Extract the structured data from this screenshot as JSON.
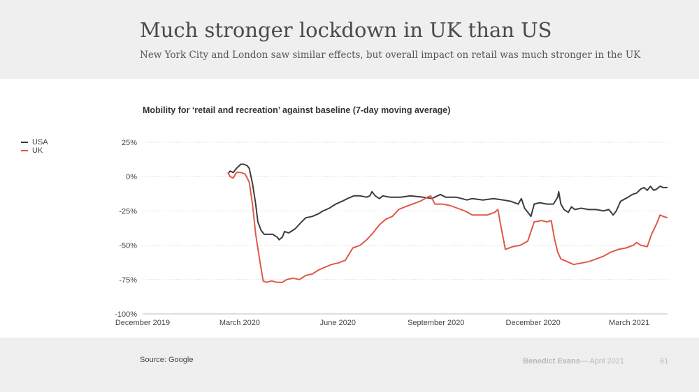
{
  "slide": {
    "title": "Much stronger lockdown in UK than US",
    "subtitle": "New York City and London saw similar effects, but overall impact on retail was much stronger in the UK"
  },
  "footer": {
    "source": "Source: Google",
    "author": "Benedict Evans",
    "date": "— April 2021",
    "page_number": "61"
  },
  "chart_data": {
    "type": "line",
    "title": "Mobility for ‘retail and recreation’ against baseline (7-day moving average)",
    "x_axis": {
      "range": [
        "2019-12-01",
        "2021-04-06"
      ],
      "ticks": [
        {
          "date": "2019-12-01",
          "label": "December 2019"
        },
        {
          "date": "2020-03-01",
          "label": "March 2020"
        },
        {
          "date": "2020-06-01",
          "label": "June 2020"
        },
        {
          "date": "2020-09-01",
          "label": "September 2020"
        },
        {
          "date": "2020-12-01",
          "label": "December 2020"
        },
        {
          "date": "2021-03-01",
          "label": "March 2021"
        }
      ]
    },
    "y_axis": {
      "range": [
        -100,
        25
      ],
      "ticks": [
        {
          "value": 25,
          "label": "25%"
        },
        {
          "value": 0,
          "label": "0%"
        },
        {
          "value": -25,
          "label": "-25%"
        },
        {
          "value": -50,
          "label": "-50%"
        },
        {
          "value": -75,
          "label": "-75%"
        },
        {
          "value": -100,
          "label": "-100%"
        }
      ]
    },
    "grid": "horizontal dotted",
    "legend_position": "left",
    "series": [
      {
        "name": "USA",
        "color": "#3d3d3d",
        "points": [
          [
            "2020-02-19",
            2
          ],
          [
            "2020-02-21",
            4
          ],
          [
            "2020-02-24",
            3
          ],
          [
            "2020-02-27",
            6
          ],
          [
            "2020-03-02",
            9
          ],
          [
            "2020-03-05",
            9
          ],
          [
            "2020-03-08",
            8
          ],
          [
            "2020-03-10",
            6
          ],
          [
            "2020-03-13",
            -5
          ],
          [
            "2020-03-16",
            -20
          ],
          [
            "2020-03-18",
            -33
          ],
          [
            "2020-03-21",
            -39
          ],
          [
            "2020-03-24",
            -42
          ],
          [
            "2020-03-28",
            -42
          ],
          [
            "2020-04-01",
            -42
          ],
          [
            "2020-04-05",
            -44
          ],
          [
            "2020-04-07",
            -46
          ],
          [
            "2020-04-10",
            -44
          ],
          [
            "2020-04-12",
            -40
          ],
          [
            "2020-04-16",
            -41
          ],
          [
            "2020-04-22",
            -38
          ],
          [
            "2020-04-28",
            -33
          ],
          [
            "2020-05-02",
            -30
          ],
          [
            "2020-05-08",
            -29
          ],
          [
            "2020-05-14",
            -27
          ],
          [
            "2020-05-18",
            -25
          ],
          [
            "2020-05-24",
            -23
          ],
          [
            "2020-05-30",
            -20
          ],
          [
            "2020-06-05",
            -18
          ],
          [
            "2020-06-10",
            -16
          ],
          [
            "2020-06-16",
            -14
          ],
          [
            "2020-06-22",
            -14
          ],
          [
            "2020-06-28",
            -15
          ],
          [
            "2020-07-01",
            -14
          ],
          [
            "2020-07-03",
            -11
          ],
          [
            "2020-07-06",
            -14
          ],
          [
            "2020-07-10",
            -16
          ],
          [
            "2020-07-13",
            -14
          ],
          [
            "2020-07-20",
            -15
          ],
          [
            "2020-07-30",
            -15
          ],
          [
            "2020-08-08",
            -14
          ],
          [
            "2020-08-20",
            -15
          ],
          [
            "2020-08-28",
            -16
          ],
          [
            "2020-09-05",
            -13
          ],
          [
            "2020-09-10",
            -15
          ],
          [
            "2020-09-20",
            -15
          ],
          [
            "2020-09-30",
            -17
          ],
          [
            "2020-10-05",
            -16
          ],
          [
            "2020-10-15",
            -17
          ],
          [
            "2020-10-25",
            -16
          ],
          [
            "2020-11-03",
            -17
          ],
          [
            "2020-11-10",
            -18
          ],
          [
            "2020-11-17",
            -20
          ],
          [
            "2020-11-20",
            -16
          ],
          [
            "2020-11-23",
            -23
          ],
          [
            "2020-11-27",
            -27
          ],
          [
            "2020-11-29",
            -29
          ],
          [
            "2020-12-02",
            -20
          ],
          [
            "2020-12-07",
            -19
          ],
          [
            "2020-12-14",
            -20
          ],
          [
            "2020-12-20",
            -20
          ],
          [
            "2020-12-24",
            -15
          ],
          [
            "2020-12-25",
            -11
          ],
          [
            "2020-12-27",
            -20
          ],
          [
            "2020-12-30",
            -24
          ],
          [
            "2021-01-03",
            -26
          ],
          [
            "2021-01-06",
            -22
          ],
          [
            "2021-01-09",
            -24
          ],
          [
            "2021-01-15",
            -23
          ],
          [
            "2021-01-22",
            -24
          ],
          [
            "2021-01-29",
            -24
          ],
          [
            "2021-02-05",
            -25
          ],
          [
            "2021-02-10",
            -24
          ],
          [
            "2021-02-14",
            -28
          ],
          [
            "2021-02-17",
            -25
          ],
          [
            "2021-02-21",
            -18
          ],
          [
            "2021-02-28",
            -15
          ],
          [
            "2021-03-04",
            -13
          ],
          [
            "2021-03-08",
            -12
          ],
          [
            "2021-03-12",
            -9
          ],
          [
            "2021-03-15",
            -8
          ],
          [
            "2021-03-18",
            -10
          ],
          [
            "2021-03-21",
            -7
          ],
          [
            "2021-03-24",
            -10
          ],
          [
            "2021-03-27",
            -9
          ],
          [
            "2021-03-30",
            -7
          ],
          [
            "2021-04-02",
            -8
          ],
          [
            "2021-04-06",
            -8
          ]
        ]
      },
      {
        "name": "UK",
        "color": "#e0584a",
        "points": [
          [
            "2020-02-19",
            3
          ],
          [
            "2020-02-21",
            0
          ],
          [
            "2020-02-24",
            -1
          ],
          [
            "2020-02-27",
            3
          ],
          [
            "2020-03-02",
            3
          ],
          [
            "2020-03-06",
            2
          ],
          [
            "2020-03-10",
            -4
          ],
          [
            "2020-03-13",
            -20
          ],
          [
            "2020-03-16",
            -42
          ],
          [
            "2020-03-20",
            -62
          ],
          [
            "2020-03-23",
            -76
          ],
          [
            "2020-03-26",
            -77
          ],
          [
            "2020-03-31",
            -76
          ],
          [
            "2020-04-05",
            -77
          ],
          [
            "2020-04-10",
            -77
          ],
          [
            "2020-04-14",
            -75
          ],
          [
            "2020-04-20",
            -74
          ],
          [
            "2020-04-26",
            -75
          ],
          [
            "2020-05-02",
            -72
          ],
          [
            "2020-05-08",
            -71
          ],
          [
            "2020-05-14",
            -68
          ],
          [
            "2020-05-20",
            -66
          ],
          [
            "2020-05-26",
            -64
          ],
          [
            "2020-06-01",
            -63
          ],
          [
            "2020-06-08",
            -61
          ],
          [
            "2020-06-15",
            -52
          ],
          [
            "2020-06-22",
            -50
          ],
          [
            "2020-06-28",
            -46
          ],
          [
            "2020-07-04",
            -41
          ],
          [
            "2020-07-10",
            -35
          ],
          [
            "2020-07-16",
            -31
          ],
          [
            "2020-07-22",
            -29
          ],
          [
            "2020-07-28",
            -24
          ],
          [
            "2020-08-03",
            -22
          ],
          [
            "2020-08-10",
            -20
          ],
          [
            "2020-08-17",
            -18
          ],
          [
            "2020-08-24",
            -15
          ],
          [
            "2020-08-27",
            -14
          ],
          [
            "2020-08-31",
            -20
          ],
          [
            "2020-09-07",
            -20
          ],
          [
            "2020-09-14",
            -21
          ],
          [
            "2020-09-21",
            -23
          ],
          [
            "2020-09-28",
            -25
          ],
          [
            "2020-10-05",
            -28
          ],
          [
            "2020-10-12",
            -28
          ],
          [
            "2020-10-19",
            -28
          ],
          [
            "2020-10-26",
            -26
          ],
          [
            "2020-10-29",
            -24
          ],
          [
            "2020-11-01",
            -37
          ],
          [
            "2020-11-05",
            -53
          ],
          [
            "2020-11-12",
            -51
          ],
          [
            "2020-11-19",
            -50
          ],
          [
            "2020-11-26",
            -47
          ],
          [
            "2020-12-02",
            -33
          ],
          [
            "2020-12-09",
            -32
          ],
          [
            "2020-12-14",
            -33
          ],
          [
            "2020-12-18",
            -32
          ],
          [
            "2020-12-21",
            -45
          ],
          [
            "2020-12-24",
            -55
          ],
          [
            "2020-12-27",
            -60
          ],
          [
            "2021-01-02",
            -62
          ],
          [
            "2021-01-08",
            -64
          ],
          [
            "2021-01-15",
            -63
          ],
          [
            "2021-01-22",
            -62
          ],
          [
            "2021-01-29",
            -60
          ],
          [
            "2021-02-05",
            -58
          ],
          [
            "2021-02-12",
            -55
          ],
          [
            "2021-02-19",
            -53
          ],
          [
            "2021-02-26",
            -52
          ],
          [
            "2021-03-05",
            -50
          ],
          [
            "2021-03-08",
            -48
          ],
          [
            "2021-03-12",
            -50
          ],
          [
            "2021-03-18",
            -51
          ],
          [
            "2021-03-22",
            -42
          ],
          [
            "2021-03-27",
            -34
          ],
          [
            "2021-03-30",
            -28
          ],
          [
            "2021-04-02",
            -29
          ],
          [
            "2021-04-06",
            -30
          ]
        ]
      }
    ]
  }
}
